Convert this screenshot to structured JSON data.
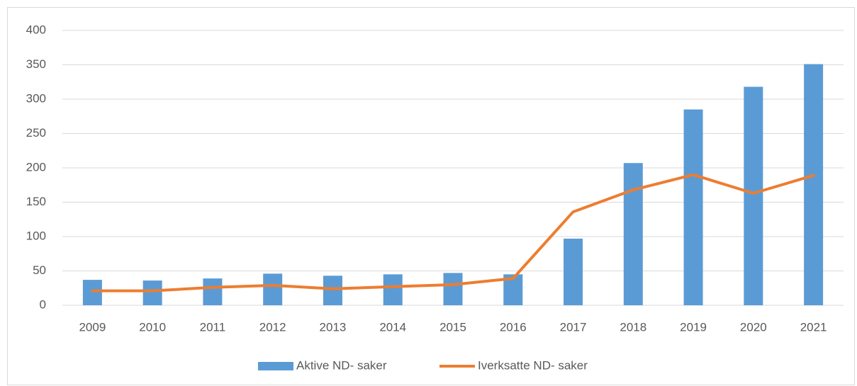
{
  "chart_data": {
    "type": "combo",
    "categories": [
      "2009",
      "2010",
      "2011",
      "2012",
      "2013",
      "2014",
      "2015",
      "2016",
      "2017",
      "2018",
      "2019",
      "2020",
      "2021"
    ],
    "series": [
      {
        "name": "Aktive ND- saker",
        "type": "bar",
        "color": "#5b9bd5",
        "values": [
          37,
          36,
          39,
          46,
          43,
          45,
          47,
          45,
          97,
          207,
          285,
          318,
          351
        ]
      },
      {
        "name": "Iverksatte ND- saker",
        "type": "line",
        "color": "#ed7d31",
        "values": [
          21,
          21,
          26,
          29,
          24,
          27,
          30,
          39,
          136,
          168,
          190,
          163,
          189
        ]
      }
    ],
    "ylim": [
      0,
      400
    ],
    "yticks": [
      0,
      50,
      100,
      150,
      200,
      250,
      300,
      350,
      400
    ],
    "grid": true,
    "legend": "bottom"
  }
}
